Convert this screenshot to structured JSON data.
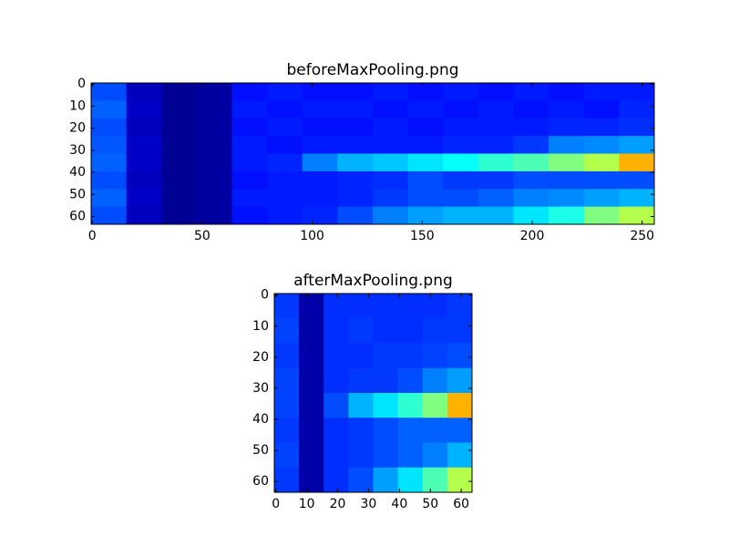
{
  "chart_data": [
    {
      "type": "heatmap",
      "title": "beforeMaxPooling.png",
      "colormap": "jet",
      "xlim": [
        -0.5,
        255.5
      ],
      "ylim": [
        63.5,
        -0.5
      ],
      "xticks": [
        0,
        50,
        100,
        150,
        200,
        250
      ],
      "yticks": [
        0,
        10,
        20,
        30,
        40,
        50,
        60
      ],
      "values": [
        [
          0.2,
          0.06,
          0.02,
          0.03,
          0.14,
          0.15,
          0.14,
          0.14,
          0.15,
          0.14,
          0.15,
          0.14,
          0.15,
          0.14,
          0.15,
          0.15
        ],
        [
          0.22,
          0.07,
          0.02,
          0.03,
          0.15,
          0.14,
          0.15,
          0.15,
          0.14,
          0.15,
          0.14,
          0.15,
          0.14,
          0.15,
          0.14,
          0.16
        ],
        [
          0.2,
          0.06,
          0.02,
          0.03,
          0.14,
          0.15,
          0.14,
          0.14,
          0.15,
          0.14,
          0.15,
          0.15,
          0.15,
          0.16,
          0.16,
          0.17
        ],
        [
          0.21,
          0.07,
          0.02,
          0.03,
          0.15,
          0.14,
          0.15,
          0.15,
          0.15,
          0.15,
          0.16,
          0.16,
          0.18,
          0.25,
          0.26,
          0.28
        ],
        [
          0.22,
          0.07,
          0.02,
          0.03,
          0.15,
          0.16,
          0.25,
          0.3,
          0.32,
          0.35,
          0.38,
          0.42,
          0.45,
          0.5,
          0.55,
          0.7
        ],
        [
          0.2,
          0.06,
          0.02,
          0.03,
          0.14,
          0.15,
          0.15,
          0.16,
          0.17,
          0.2,
          0.18,
          0.18,
          0.2,
          0.2,
          0.2,
          0.2
        ],
        [
          0.22,
          0.07,
          0.02,
          0.03,
          0.15,
          0.15,
          0.15,
          0.16,
          0.18,
          0.2,
          0.2,
          0.22,
          0.25,
          0.26,
          0.28,
          0.3
        ],
        [
          0.2,
          0.06,
          0.02,
          0.03,
          0.14,
          0.15,
          0.16,
          0.2,
          0.25,
          0.28,
          0.3,
          0.3,
          0.35,
          0.4,
          0.5,
          0.55
        ]
      ]
    },
    {
      "type": "heatmap",
      "title": "afterMaxPooling.png",
      "colormap": "jet",
      "xlim": [
        -0.5,
        63.5
      ],
      "ylim": [
        63.5,
        -0.5
      ],
      "xticks": [
        0,
        10,
        20,
        30,
        40,
        50,
        60
      ],
      "yticks": [
        0,
        10,
        20,
        30,
        40,
        50,
        60
      ],
      "values": [
        [
          0.18,
          0.04,
          0.17,
          0.17,
          0.17,
          0.17,
          0.17,
          0.18
        ],
        [
          0.19,
          0.04,
          0.17,
          0.18,
          0.17,
          0.17,
          0.18,
          0.18
        ],
        [
          0.18,
          0.04,
          0.17,
          0.17,
          0.18,
          0.18,
          0.19,
          0.2
        ],
        [
          0.19,
          0.04,
          0.17,
          0.18,
          0.18,
          0.2,
          0.25,
          0.28
        ],
        [
          0.19,
          0.04,
          0.2,
          0.3,
          0.35,
          0.42,
          0.5,
          0.7
        ],
        [
          0.18,
          0.04,
          0.17,
          0.18,
          0.2,
          0.22,
          0.22,
          0.22
        ],
        [
          0.19,
          0.04,
          0.17,
          0.18,
          0.2,
          0.22,
          0.25,
          0.3
        ],
        [
          0.18,
          0.04,
          0.17,
          0.2,
          0.28,
          0.35,
          0.45,
          0.55
        ]
      ]
    }
  ]
}
